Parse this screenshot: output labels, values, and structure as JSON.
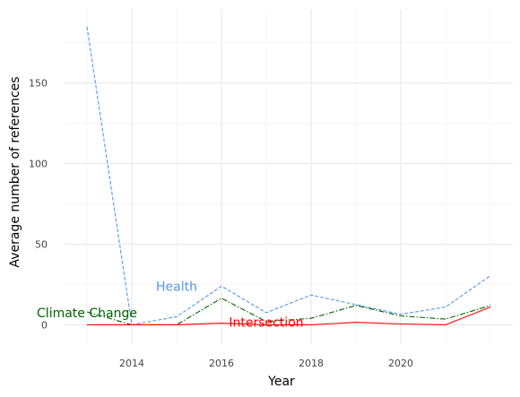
{
  "chart_data": {
    "type": "line",
    "title": "",
    "xlabel": "Year",
    "ylabel": "Average number of references",
    "xlim": [
      2012.5,
      2022.5
    ],
    "ylim": [
      -12,
      196
    ],
    "x_ticks": [
      2014,
      2016,
      2018,
      2020
    ],
    "y_ticks": [
      0,
      50,
      100,
      150
    ],
    "grid": true,
    "x": [
      2013,
      2014,
      2015,
      2016,
      2017,
      2018,
      2019,
      2020,
      2021,
      2022
    ],
    "series": [
      {
        "name": "Health",
        "color": "#5599e6",
        "dash": "dashed",
        "values": [
          185,
          0,
          5,
          24,
          7.5,
          18.5,
          12.5,
          6.5,
          11,
          30.5
        ],
        "label_x": 2015,
        "label_y": 24
      },
      {
        "name": "Climate Change",
        "color": "#006400",
        "dash": "dashdot",
        "values": [
          8,
          0,
          0,
          16.5,
          2,
          4,
          12,
          5.5,
          3.5,
          12
        ],
        "label_x": 2013,
        "label_y": 7.5
      },
      {
        "name": "Intersection",
        "color": "#ff0000",
        "dash": "solid",
        "values": [
          0,
          0,
          0,
          1,
          0,
          0,
          1.5,
          0.5,
          0,
          11
        ],
        "label_x": 2017,
        "label_y": 1.5
      }
    ]
  }
}
